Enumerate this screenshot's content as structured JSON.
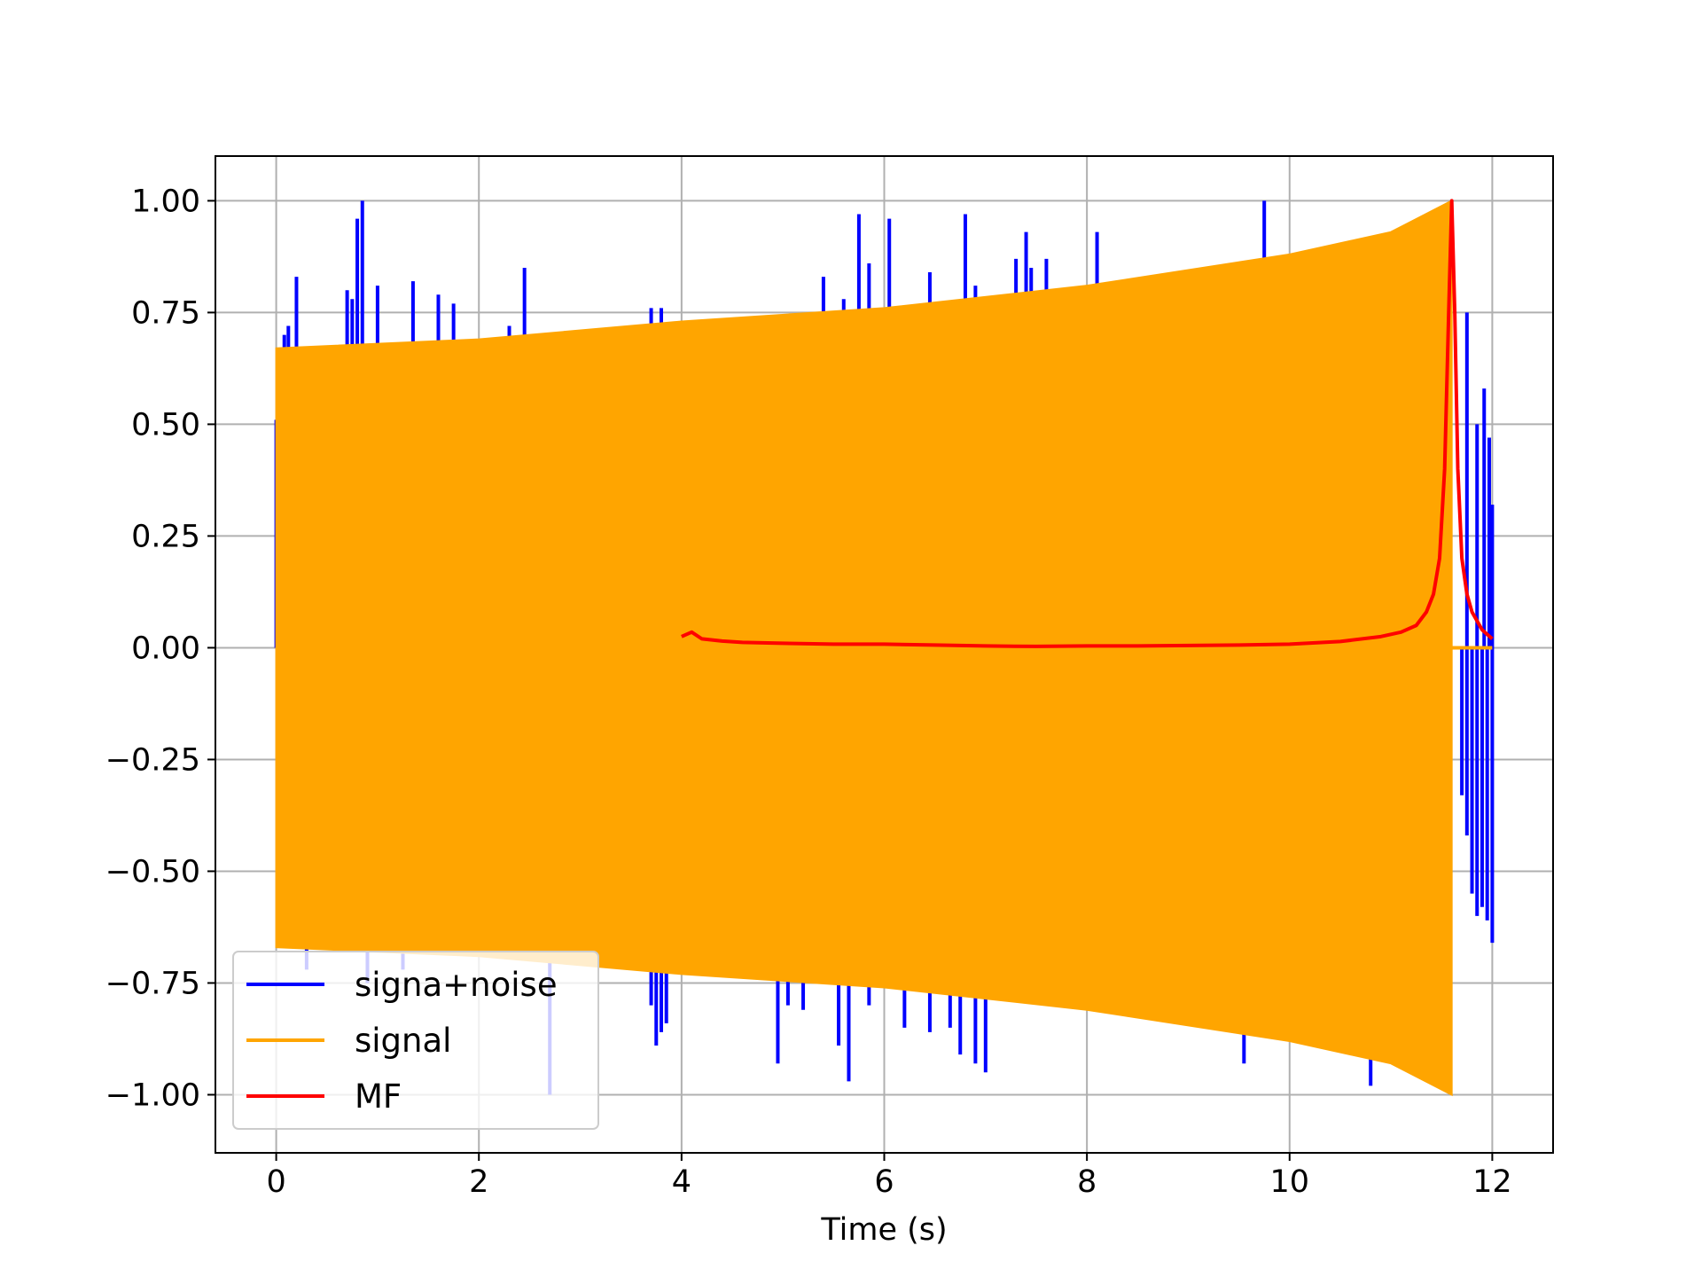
{
  "chart_data": {
    "type": "line",
    "title": "",
    "xlabel": "Time (s)",
    "ylabel": "",
    "xlim": [
      -0.6,
      12.6
    ],
    "ylim": [
      -1.13,
      1.1
    ],
    "xticks": [
      0,
      2,
      4,
      6,
      8,
      10,
      12
    ],
    "xtick_labels": [
      "0",
      "2",
      "4",
      "6",
      "8",
      "10",
      "12"
    ],
    "yticks": [
      1.0,
      0.75,
      0.5,
      0.25,
      0.0,
      -0.25,
      -0.5,
      -0.75,
      -1.0
    ],
    "ytick_labels": [
      "1.00",
      "0.75",
      "0.50",
      "0.25",
      "0.00",
      "−0.25",
      "−0.50",
      "−0.75",
      "−1.00"
    ],
    "grid": true,
    "legend_position": "lower-left",
    "series": [
      {
        "name": "signa+noise",
        "color": "#0000ff",
        "description_note": "",
        "spikes_up": [
          [
            0.0,
            0.51
          ],
          [
            0.08,
            0.7
          ],
          [
            0.12,
            0.72
          ],
          [
            0.2,
            0.83
          ],
          [
            0.7,
            0.8
          ],
          [
            0.75,
            0.78
          ],
          [
            0.8,
            0.96
          ],
          [
            0.85,
            1.0
          ],
          [
            1.0,
            0.81
          ],
          [
            1.35,
            0.82
          ],
          [
            1.6,
            0.79
          ],
          [
            1.75,
            0.77
          ],
          [
            2.3,
            0.72
          ],
          [
            2.45,
            0.85
          ],
          [
            3.45,
            0.7
          ],
          [
            3.7,
            0.76
          ],
          [
            3.8,
            0.76
          ],
          [
            5.4,
            0.83
          ],
          [
            5.6,
            0.78
          ],
          [
            5.75,
            0.97
          ],
          [
            5.85,
            0.86
          ],
          [
            6.05,
            0.96
          ],
          [
            6.45,
            0.84
          ],
          [
            6.8,
            0.97
          ],
          [
            6.9,
            0.81
          ],
          [
            7.3,
            0.87
          ],
          [
            7.4,
            0.93
          ],
          [
            7.45,
            0.85
          ],
          [
            7.6,
            0.87
          ],
          [
            8.1,
            0.93
          ],
          [
            9.75,
            1.0
          ],
          [
            11.75,
            0.75
          ],
          [
            11.85,
            0.5
          ],
          [
            11.92,
            0.58
          ],
          [
            11.97,
            0.47
          ],
          [
            12.0,
            0.32
          ]
        ],
        "spikes_down": [
          [
            0.3,
            -0.72
          ],
          [
            0.65,
            -0.68
          ],
          [
            0.9,
            -0.75
          ],
          [
            1.25,
            -0.72
          ],
          [
            2.7,
            -1.0
          ],
          [
            3.7,
            -0.8
          ],
          [
            3.75,
            -0.89
          ],
          [
            3.8,
            -0.86
          ],
          [
            3.85,
            -0.84
          ],
          [
            4.05,
            -0.73
          ],
          [
            4.95,
            -0.93
          ],
          [
            5.05,
            -0.8
          ],
          [
            5.2,
            -0.81
          ],
          [
            5.55,
            -0.89
          ],
          [
            5.65,
            -0.97
          ],
          [
            5.85,
            -0.8
          ],
          [
            6.2,
            -0.85
          ],
          [
            6.45,
            -0.86
          ],
          [
            6.65,
            -0.85
          ],
          [
            6.75,
            -0.91
          ],
          [
            6.9,
            -0.93
          ],
          [
            7.0,
            -0.95
          ],
          [
            9.55,
            -0.93
          ],
          [
            10.8,
            -0.98
          ],
          [
            11.7,
            -0.33
          ],
          [
            11.75,
            -0.42
          ],
          [
            11.8,
            -0.55
          ],
          [
            11.85,
            -0.6
          ],
          [
            11.9,
            -0.58
          ],
          [
            11.95,
            -0.61
          ],
          [
            12.0,
            -0.66
          ]
        ]
      },
      {
        "name": "signal",
        "color": "#ffa500",
        "envelope": [
          [
            0.0,
            0.67
          ],
          [
            2.0,
            0.69
          ],
          [
            4.0,
            0.73
          ],
          [
            6.0,
            0.76
          ],
          [
            8.0,
            0.81
          ],
          [
            10.0,
            0.88
          ],
          [
            11.0,
            0.93
          ],
          [
            11.6,
            1.0
          ]
        ],
        "after": [
          [
            11.6,
            0.0
          ],
          [
            12.0,
            0.0
          ]
        ]
      },
      {
        "name": "MF",
        "color": "#ff0000",
        "points": [
          [
            4.0,
            0.025
          ],
          [
            4.1,
            0.035
          ],
          [
            4.2,
            0.02
          ],
          [
            4.4,
            0.015
          ],
          [
            4.6,
            0.012
          ],
          [
            5.0,
            0.01
          ],
          [
            5.5,
            0.008
          ],
          [
            6.0,
            0.008
          ],
          [
            6.5,
            0.006
          ],
          [
            7.0,
            0.004
          ],
          [
            7.5,
            0.003
          ],
          [
            8.0,
            0.004
          ],
          [
            8.5,
            0.004
          ],
          [
            9.0,
            0.005
          ],
          [
            9.5,
            0.006
          ],
          [
            10.0,
            0.008
          ],
          [
            10.5,
            0.014
          ],
          [
            10.9,
            0.025
          ],
          [
            11.1,
            0.035
          ],
          [
            11.25,
            0.05
          ],
          [
            11.35,
            0.08
          ],
          [
            11.42,
            0.12
          ],
          [
            11.48,
            0.2
          ],
          [
            11.53,
            0.4
          ],
          [
            11.57,
            0.75
          ],
          [
            11.6,
            1.0
          ],
          [
            11.63,
            0.75
          ],
          [
            11.66,
            0.4
          ],
          [
            11.7,
            0.2
          ],
          [
            11.75,
            0.12
          ],
          [
            11.8,
            0.08
          ],
          [
            11.9,
            0.04
          ],
          [
            12.0,
            0.02
          ]
        ]
      }
    ]
  }
}
